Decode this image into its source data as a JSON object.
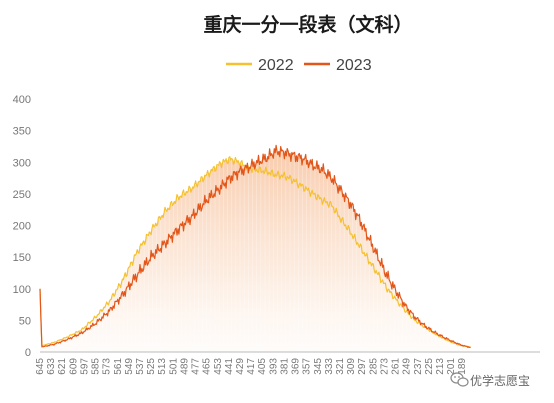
{
  "chart_data": {
    "type": "area",
    "title": "重庆一分一段表（文科）",
    "xlabel": "",
    "ylabel": "",
    "ylim": [
      0,
      400
    ],
    "yticks": [
      0,
      50,
      100,
      150,
      200,
      250,
      300,
      350,
      400
    ],
    "x_range": [
      645,
      105
    ],
    "x_ticks": [
      645,
      633,
      621,
      609,
      597,
      585,
      573,
      561,
      549,
      537,
      525,
      513,
      501,
      489,
      477,
      465,
      453,
      441,
      429,
      417,
      405,
      393,
      381,
      369,
      357,
      345,
      333,
      321,
      309,
      297,
      285,
      273,
      261,
      249,
      237,
      225,
      213,
      201,
      189
    ],
    "grid": false,
    "legend": "top-center",
    "series": [
      {
        "name": "2022",
        "color": "#f5c12e",
        "points": [
          [
            645,
            100
          ],
          [
            643,
            10
          ],
          [
            630,
            15
          ],
          [
            615,
            24
          ],
          [
            600,
            35
          ],
          [
            585,
            55
          ],
          [
            570,
            80
          ],
          [
            555,
            115
          ],
          [
            540,
            158
          ],
          [
            525,
            192
          ],
          [
            510,
            222
          ],
          [
            495,
            245
          ],
          [
            480,
            260
          ],
          [
            465,
            280
          ],
          [
            450,
            298
          ],
          [
            440,
            305
          ],
          [
            430,
            300
          ],
          [
            420,
            290
          ],
          [
            410,
            288
          ],
          [
            400,
            285
          ],
          [
            390,
            280
          ],
          [
            380,
            278
          ],
          [
            370,
            270
          ],
          [
            360,
            260
          ],
          [
            350,
            250
          ],
          [
            340,
            240
          ],
          [
            330,
            232
          ],
          [
            320,
            210
          ],
          [
            310,
            190
          ],
          [
            300,
            168
          ],
          [
            290,
            145
          ],
          [
            280,
            123
          ],
          [
            270,
            100
          ],
          [
            260,
            82
          ],
          [
            250,
            65
          ],
          [
            240,
            50
          ],
          [
            230,
            40
          ],
          [
            220,
            30
          ],
          [
            210,
            22
          ],
          [
            200,
            15
          ],
          [
            190,
            10
          ],
          [
            180,
            8
          ]
        ]
      },
      {
        "name": "2023",
        "color": "#e2561a",
        "points": [
          [
            645,
            100
          ],
          [
            643,
            8
          ],
          [
            630,
            12
          ],
          [
            615,
            20
          ],
          [
            600,
            30
          ],
          [
            585,
            45
          ],
          [
            570,
            65
          ],
          [
            555,
            92
          ],
          [
            540,
            122
          ],
          [
            525,
            150
          ],
          [
            510,
            172
          ],
          [
            495,
            195
          ],
          [
            480,
            215
          ],
          [
            465,
            240
          ],
          [
            450,
            260
          ],
          [
            440,
            275
          ],
          [
            430,
            285
          ],
          [
            420,
            292
          ],
          [
            410,
            300
          ],
          [
            400,
            307
          ],
          [
            390,
            318
          ],
          [
            380,
            315
          ],
          [
            370,
            310
          ],
          [
            360,
            305
          ],
          [
            350,
            295
          ],
          [
            340,
            288
          ],
          [
            330,
            275
          ],
          [
            320,
            255
          ],
          [
            310,
            235
          ],
          [
            300,
            210
          ],
          [
            290,
            180
          ],
          [
            280,
            150
          ],
          [
            270,
            120
          ],
          [
            260,
            95
          ],
          [
            250,
            72
          ],
          [
            240,
            55
          ],
          [
            230,
            42
          ],
          [
            220,
            32
          ],
          [
            210,
            24
          ],
          [
            200,
            17
          ],
          [
            190,
            11
          ],
          [
            180,
            7
          ]
        ]
      }
    ]
  },
  "watermark": {
    "icon": "wechat-icon",
    "text": "优学志愿宝"
  }
}
